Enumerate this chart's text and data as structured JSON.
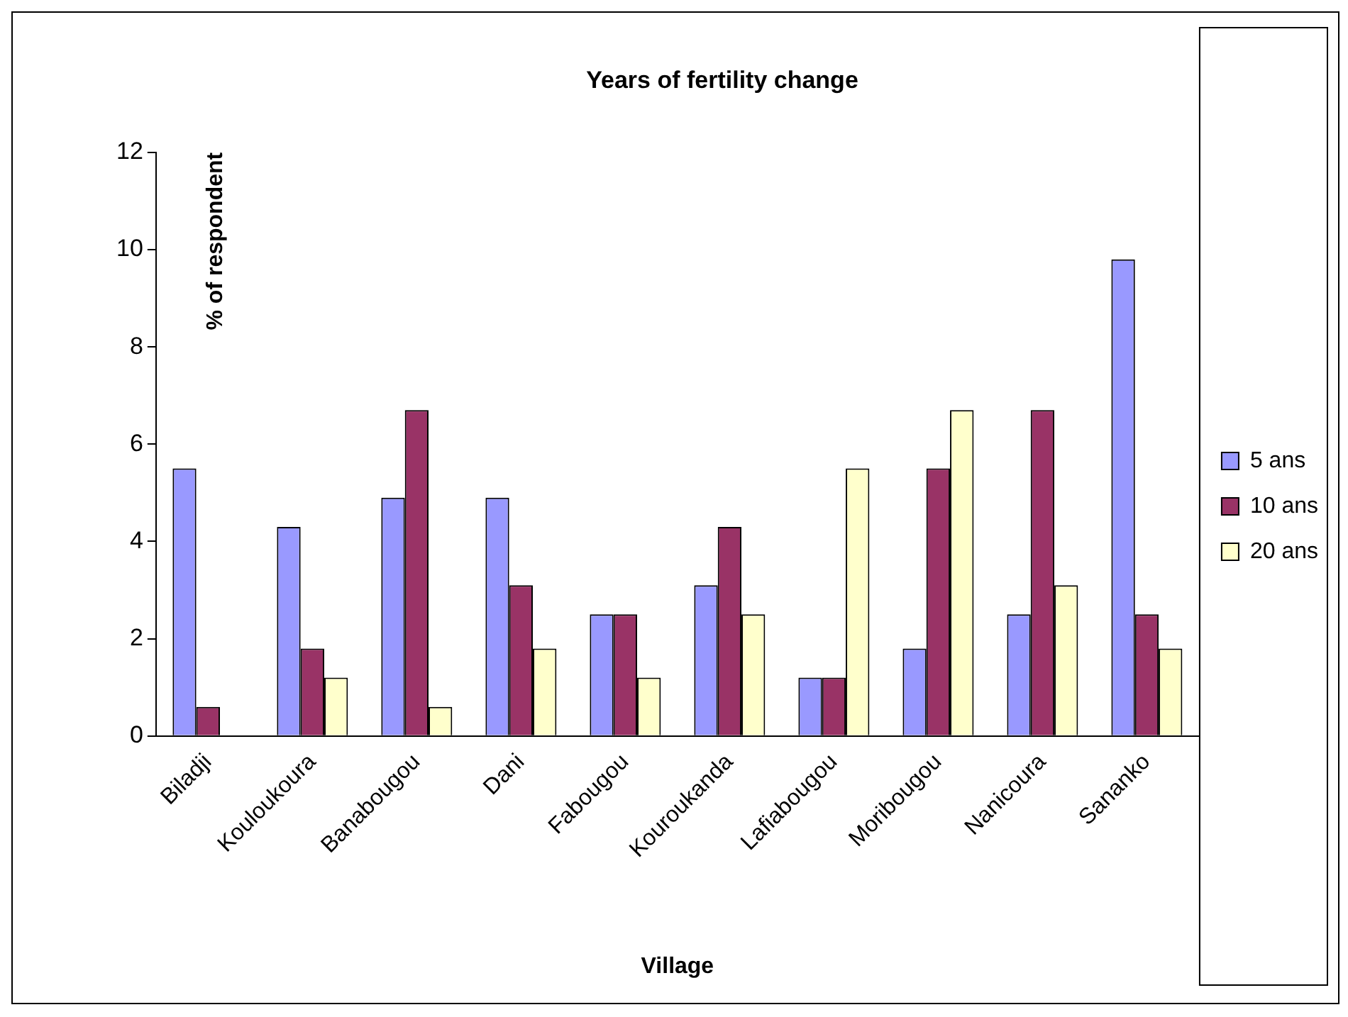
{
  "chart_data": {
    "type": "bar",
    "title": "Years of fertility change",
    "xlabel": "Village",
    "ylabel": "% of respondent",
    "categories": [
      "Biladji",
      "Kouloukoura",
      "Banabougou",
      "Dani",
      "Fabougou",
      "Kouroukanda",
      "Lafiabougou",
      "Moribougou",
      "Nanicoura",
      "Sananko"
    ],
    "series": [
      {
        "name": "5 ans",
        "color": "#9999ff",
        "values": [
          5.5,
          4.3,
          4.9,
          4.9,
          2.5,
          3.1,
          1.2,
          1.8,
          2.5,
          9.8
        ]
      },
      {
        "name": "10 ans",
        "color": "#993366",
        "values": [
          0.6,
          1.8,
          6.7,
          3.1,
          2.5,
          4.3,
          1.2,
          5.5,
          6.7,
          2.5
        ]
      },
      {
        "name": "20 ans",
        "color": "#ffffcc",
        "values": [
          0,
          1.2,
          0.6,
          1.8,
          1.2,
          2.5,
          5.5,
          6.7,
          3.1,
          1.8
        ]
      }
    ],
    "ylim": [
      0,
      12
    ],
    "yticks": [
      0,
      2,
      4,
      6,
      8,
      10,
      12
    ],
    "grid": false,
    "legend": "right"
  }
}
